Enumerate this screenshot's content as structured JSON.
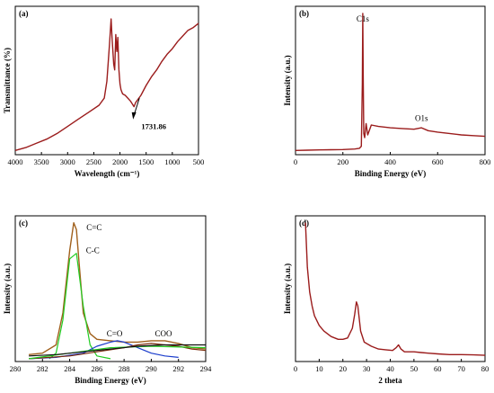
{
  "colors": {
    "curve": "#9b1c1c",
    "c_eq_c": "#a0601c",
    "c_c": "#22cc22",
    "c_eq_o": "#1a3ccc",
    "coo": "#7a2a0a",
    "baseline": "#111111"
  },
  "chart_data": [
    {
      "panel": "(a)",
      "type": "line",
      "xlabel": "Wavelength (cm⁻¹)",
      "ylabel": "Transmittance (%)",
      "xlim": [
        4000,
        500
      ],
      "x_reversed": true,
      "xticks": [
        4000,
        3500,
        3000,
        2500,
        2000,
        1500,
        1000,
        500
      ],
      "yticks_shown": false,
      "annotations": [
        {
          "text": "1731.86",
          "x": 1731.86,
          "arrow": true
        }
      ],
      "series": [
        {
          "x": [
            4000,
            3800,
            3600,
            3400,
            3200,
            3000,
            2800,
            2600,
            2400,
            2300,
            2250,
            2200,
            2170,
            2150,
            2120,
            2100,
            2080,
            2060,
            2040,
            2020,
            2000,
            1980,
            1950,
            1900,
            1850,
            1800,
            1731.86,
            1700,
            1600,
            1500,
            1400,
            1300,
            1200,
            1100,
            1000,
            900,
            800,
            700,
            600,
            500
          ],
          "y": [
            0.03,
            0.05,
            0.08,
            0.11,
            0.15,
            0.2,
            0.25,
            0.3,
            0.35,
            0.4,
            0.52,
            0.78,
            0.96,
            0.82,
            0.64,
            0.6,
            0.85,
            0.73,
            0.83,
            0.6,
            0.5,
            0.46,
            0.43,
            0.42,
            0.4,
            0.38,
            0.34,
            0.37,
            0.42,
            0.49,
            0.55,
            0.6,
            0.66,
            0.71,
            0.75,
            0.8,
            0.84,
            0.88,
            0.9,
            0.93
          ]
        }
      ]
    },
    {
      "panel": "(b)",
      "type": "line",
      "xlabel": "Binding Energy (eV)",
      "ylabel": "Intensity (a.u.)",
      "xlim": [
        0,
        800
      ],
      "xticks": [
        0,
        200,
        400,
        600,
        800
      ],
      "yticks_shown": false,
      "annotations": [
        {
          "text": "C1s",
          "x": 284
        },
        {
          "text": "O1s",
          "x": 532
        }
      ],
      "series": [
        {
          "x": [
            0,
            50,
            100,
            150,
            200,
            250,
            270,
            278,
            282,
            284,
            286,
            288,
            292,
            298,
            305,
            320,
            350,
            400,
            450,
            500,
            532,
            560,
            600,
            650,
            700,
            750,
            800
          ],
          "y": [
            0.03,
            0.032,
            0.034,
            0.035,
            0.036,
            0.04,
            0.045,
            0.06,
            0.5,
            1.0,
            0.55,
            0.15,
            0.12,
            0.22,
            0.14,
            0.21,
            0.2,
            0.19,
            0.185,
            0.18,
            0.19,
            0.17,
            0.16,
            0.15,
            0.14,
            0.135,
            0.13
          ]
        }
      ]
    },
    {
      "panel": "(c)",
      "type": "line",
      "xlabel": "Binding Energy (eV)",
      "ylabel": "Intensity (a.u.)",
      "xlim": [
        280,
        294
      ],
      "xticks": [
        280,
        282,
        284,
        286,
        288,
        290,
        292,
        294
      ],
      "yticks_shown": false,
      "annotations": [
        {
          "text": "C=C"
        },
        {
          "text": "C-C"
        },
        {
          "text": "C=O"
        },
        {
          "text": "COO"
        }
      ],
      "series": [
        {
          "name": "C=C",
          "x": [
            281,
            282,
            283,
            283.5,
            284,
            284.3,
            284.5,
            284.7,
            285,
            285.5,
            286,
            287,
            288,
            289,
            290,
            291,
            292,
            293,
            294
          ],
          "y": [
            0.05,
            0.06,
            0.12,
            0.35,
            0.8,
            1.0,
            0.95,
            0.7,
            0.35,
            0.2,
            0.16,
            0.15,
            0.14,
            0.14,
            0.15,
            0.15,
            0.13,
            0.1,
            0.09
          ]
        },
        {
          "name": "C-C",
          "x": [
            282.5,
            283,
            283.5,
            284,
            284.5,
            285,
            285.5,
            286,
            287
          ],
          "y": [
            0.02,
            0.06,
            0.3,
            0.74,
            0.78,
            0.4,
            0.12,
            0.04,
            0.02
          ]
        },
        {
          "name": "C=O",
          "x": [
            281,
            283,
            285,
            286,
            287,
            287.5,
            288,
            289,
            290,
            291,
            292
          ],
          "y": [
            0.02,
            0.03,
            0.06,
            0.11,
            0.14,
            0.15,
            0.14,
            0.1,
            0.06,
            0.04,
            0.03
          ]
        },
        {
          "name": "COO",
          "x": [
            281,
            284,
            286,
            288,
            289,
            290,
            291,
            292,
            293,
            294
          ],
          "y": [
            0.02,
            0.04,
            0.07,
            0.1,
            0.12,
            0.13,
            0.12,
            0.11,
            0.09,
            0.08
          ]
        },
        {
          "name": "green-baseline",
          "x": [
            281,
            284,
            287,
            290,
            294
          ],
          "y": [
            0.02,
            0.06,
            0.1,
            0.11,
            0.1
          ]
        },
        {
          "name": "black-baseline",
          "x": [
            281,
            283,
            285,
            287,
            289,
            291,
            294
          ],
          "y": [
            0.04,
            0.05,
            0.07,
            0.09,
            0.11,
            0.12,
            0.12
          ]
        }
      ]
    },
    {
      "panel": "(d)",
      "type": "line",
      "xlabel": "2 theta",
      "ylabel": "Intensity (a.u.)",
      "xlim": [
        0,
        80
      ],
      "xticks": [
        0,
        10,
        20,
        30,
        40,
        50,
        60,
        70,
        80
      ],
      "yticks_shown": false,
      "series": [
        {
          "x": [
            4.2,
            5,
            6,
            7,
            8,
            10,
            12,
            15,
            18,
            20,
            22,
            24,
            25,
            25.7,
            26.3,
            27.5,
            29,
            32,
            35,
            38,
            41,
            42.5,
            43.5,
            44.5,
            46,
            50,
            53,
            56,
            60,
            65,
            70,
            75,
            80
          ],
          "y": [
            1.0,
            0.68,
            0.5,
            0.4,
            0.33,
            0.26,
            0.22,
            0.18,
            0.16,
            0.16,
            0.17,
            0.24,
            0.34,
            0.43,
            0.4,
            0.22,
            0.14,
            0.11,
            0.09,
            0.085,
            0.08,
            0.1,
            0.12,
            0.09,
            0.07,
            0.07,
            0.065,
            0.06,
            0.055,
            0.05,
            0.05,
            0.048,
            0.045
          ]
        }
      ]
    }
  ]
}
